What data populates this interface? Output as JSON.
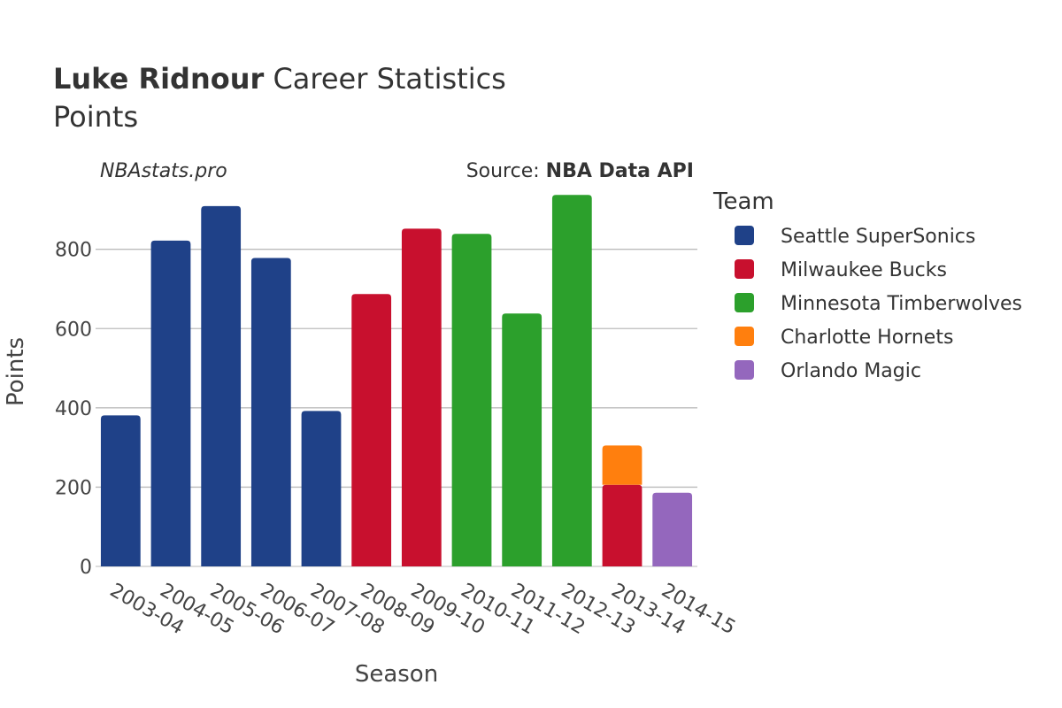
{
  "header": {
    "title_bold": "Luke Ridnour",
    "title_rest": " Career Statistics",
    "subtitle": "Points"
  },
  "credits": {
    "site": "NBAstats.pro",
    "source_prefix": "Source: ",
    "source_name": "NBA Data API"
  },
  "legend": {
    "title": "Team",
    "placement": "right"
  },
  "chart_data": {
    "type": "bar",
    "stacked": true,
    "xlabel": "Season",
    "ylabel": "Points",
    "ylim": [
      0,
      960
    ],
    "yticks": [
      0,
      200,
      400,
      600,
      800
    ],
    "grid": true,
    "categories": [
      "2003-04",
      "2004-05",
      "2005-06",
      "2006-07",
      "2007-08",
      "2008-09",
      "2009-10",
      "2010-11",
      "2011-12",
      "2012-13",
      "2013-14",
      "2014-15"
    ],
    "series": [
      {
        "name": "Seattle SuperSonics",
        "color": "#1f4188",
        "values": [
          381,
          822,
          909,
          778,
          392,
          0,
          0,
          0,
          0,
          0,
          0,
          0
        ]
      },
      {
        "name": "Milwaukee Bucks",
        "color": "#c8102e",
        "values": [
          0,
          0,
          0,
          0,
          0,
          687,
          852,
          0,
          0,
          0,
          206,
          0
        ]
      },
      {
        "name": "Minnesota Timberwolves",
        "color": "#2ca02c",
        "values": [
          0,
          0,
          0,
          0,
          0,
          0,
          0,
          839,
          638,
          937,
          0,
          0
        ]
      },
      {
        "name": "Charlotte Hornets",
        "color": "#ff7f0e",
        "values": [
          0,
          0,
          0,
          0,
          0,
          0,
          0,
          0,
          0,
          0,
          99,
          0
        ]
      },
      {
        "name": "Orlando Magic",
        "color": "#9467bd",
        "values": [
          0,
          0,
          0,
          0,
          0,
          0,
          0,
          0,
          0,
          0,
          0,
          186
        ]
      }
    ]
  }
}
